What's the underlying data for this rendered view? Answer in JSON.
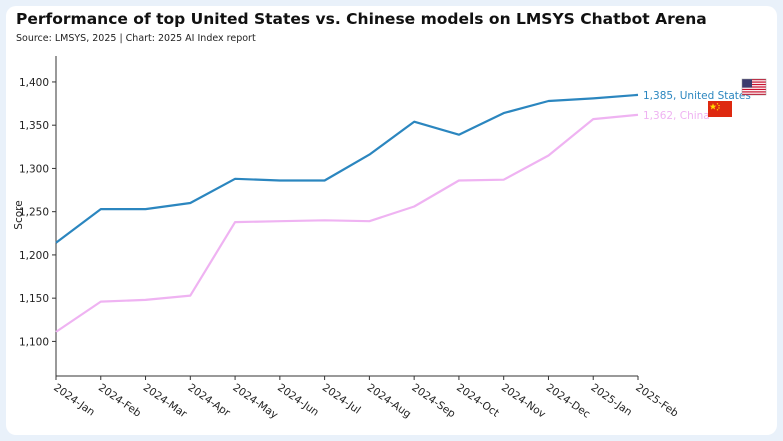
{
  "header": {
    "title": "Performance of top United States vs. Chinese models on LMSYS Chatbot Arena",
    "subtitle": "Source: LMSYS, 2025 | Chart: 2025 AI Index report"
  },
  "chart_data": {
    "type": "line",
    "ylabel": "Score",
    "xlabel": "",
    "x": [
      "2024-Jan",
      "2024-Feb",
      "2024-Mar",
      "2024-Apr",
      "2024-May",
      "2024-Jun",
      "2024-Jul",
      "2024-Aug",
      "2024-Sep",
      "2024-Oct",
      "2024-Nov",
      "2024-Dec",
      "2025-Jan",
      "2025-Feb"
    ],
    "ylim": [
      1060,
      1430
    ],
    "yticks": [
      1100,
      1150,
      1200,
      1250,
      1300,
      1350,
      1400
    ],
    "ytick_labels": [
      "1,100",
      "1,150",
      "1,200",
      "1,250",
      "1,300",
      "1,350",
      "1,400"
    ],
    "grid": false,
    "series": [
      {
        "name": "United States",
        "end_label": "1,385, United States",
        "color": "#2b86bf",
        "flag": "us-flag-icon",
        "values": [
          1214,
          1253,
          1253,
          1260,
          1288,
          1286,
          1286,
          1316,
          1354,
          1339,
          1364,
          1378,
          1381,
          1385
        ]
      },
      {
        "name": "China",
        "end_label": "1,362, China",
        "color": "#efb3f2",
        "flag": "china-flag-icon",
        "values": [
          1111,
          1146,
          1148,
          1153,
          1238,
          1239,
          1240,
          1239,
          1256,
          1286,
          1287,
          1315,
          1357,
          1362
        ]
      }
    ]
  }
}
